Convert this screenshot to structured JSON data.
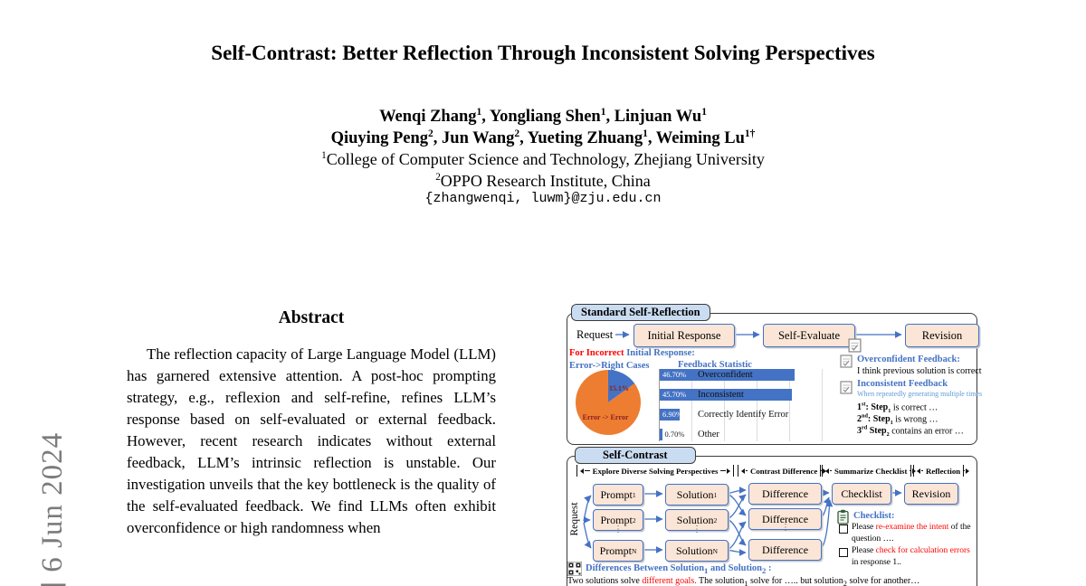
{
  "watermark": {
    "text": "] 6 Jun 2024"
  },
  "title": "Self-Contrast: Better Reflection Through Inconsistent Solving Perspectives",
  "authors": {
    "line1": [
      {
        "t": "Wenqi Zhang",
        "s": "1"
      },
      {
        "t": "Yongliang Shen",
        "s": "1"
      },
      {
        "t": "Linjuan Wu",
        "s": "1"
      }
    ],
    "line2": [
      {
        "t": "Qiuying Peng",
        "s": "2"
      },
      {
        "t": "Jun Wang",
        "s": "2"
      },
      {
        "t": "Yueting Zhuang",
        "s": "1"
      },
      {
        "t": "Weiming Lu",
        "s": "1†"
      }
    ],
    "affil1": {
      "sup": "1",
      "text": "College of Computer Science and Technology, Zhejiang University"
    },
    "affil2": {
      "sup": "2",
      "text": "OPPO Research Institute, China"
    },
    "email": "{zhangwenqi, luwm}@zju.edu.cn"
  },
  "abstract": {
    "heading": "Abstract",
    "text": "The reflection capacity of Large Language Model (LLM) has garnered extensive attention. A post-hoc prompting strategy, e.g., reflexion and self-refine, refines LLM’s response based on self-evaluated or external feedback. However, recent research indicates without external feedback, LLM’s intrinsic reflection is unstable. Our investigation unveils that the key bottleneck is the quality of the self-evaluated feedback. We find LLMs often exhibit overconfidence or high randomness when"
  },
  "colors": {
    "accent_blue": "#4472C4",
    "bar_blue": "#4472C4",
    "pie_orange": "#ED7D31",
    "pie_blue": "#4472C4",
    "red": "#FF0000",
    "light_blue": "#5B9BD5",
    "box_fill": "#FBE5D6",
    "tab_fill": "#CADCF1"
  },
  "figure": {
    "top_panel": {
      "tab": "Standard Self-Reflection",
      "request": "Request",
      "boxes": [
        "Initial Response",
        "Self-Evaluate",
        "Revision"
      ],
      "incorrect_line": {
        "pre": "For ",
        "highlight": "Incorrect",
        "post": " Initial Response:"
      },
      "pie": {
        "label": "Error->Right Cases",
        "type": "pie",
        "slices": [
          {
            "name": "Error -> Right",
            "value": 15.1,
            "label": "15.1%",
            "color": "#4472C4"
          },
          {
            "name": "Error -> Error",
            "value": 84.9,
            "label": "Error -> Error",
            "color": "#ED7D31"
          }
        ]
      },
      "bar_chart": {
        "title": "Feedback Statistic",
        "type": "bar",
        "categories": [
          "Overconfident",
          "Inconsistent",
          "Correctly Identify Error",
          "Other"
        ],
        "values": [
          46.7,
          45.7,
          6.9,
          0.7
        ],
        "value_labels": [
          "46.70%",
          "45.70%",
          "6.90%",
          "0.70%"
        ],
        "bar_color": "#4472C4"
      },
      "notes": {
        "overconfident_title": "Overconfident Feedback:",
        "overconfident_text": "I think previous solution is correct",
        "inconsistent_title": "Inconsistent Feedback",
        "inconsistent_sub": "When repeatedly generating multiple times",
        "steps": [
          {
            "num": "1",
            "ord": "st",
            "colon": ":",
            "sub": "1",
            "tail": " is correct …"
          },
          {
            "num": "2",
            "ord": "nd",
            "colon": ":",
            "sub": "1",
            "tail": " is wrong …"
          },
          {
            "num": "3",
            "ord": "rd",
            "colon": "",
            "sub": "2",
            "tail": " contains an error …"
          }
        ]
      }
    },
    "bottom_panel": {
      "tab": "Self-Contrast",
      "request": "Request",
      "phases": [
        "Explore Diverse Solving Perspectives",
        "Contrast Difference",
        "Summarize Checklist",
        "Reflection"
      ],
      "prompts": [
        [
          {
            "t": "Prompt"
          },
          {
            "sub": "1"
          }
        ],
        [
          {
            "t": "Prompt"
          },
          {
            "sub": "2"
          }
        ],
        [
          {
            "t": "Prompt"
          },
          {
            "sub": "N"
          }
        ]
      ],
      "solutions": [
        [
          {
            "t": "Solution"
          },
          {
            "sub": "1"
          }
        ],
        [
          {
            "t": "Solution"
          },
          {
            "sub": "2"
          }
        ],
        [
          {
            "t": "Solution"
          },
          {
            "sub": "N"
          }
        ]
      ],
      "differences": [
        "Difference",
        "Difference",
        "Difference"
      ],
      "checklist_box": "Checklist",
      "revision_box": "Revision",
      "checklist_notes": {
        "title": "Checklist:",
        "items": [
          [
            {
              "t": "Please ",
              "c": "k"
            },
            {
              "t": "re-examine the intent",
              "c": "r"
            },
            {
              "t": " of the question ….",
              "c": "k"
            }
          ],
          [
            {
              "t": "Please ",
              "c": "k"
            },
            {
              "t": "check for calculation errors",
              "c": "r"
            },
            {
              "t": " in response 1..",
              "c": "k"
            }
          ]
        ]
      },
      "differences_note": {
        "title_parts": [
          {
            "t": "Differences Between Solution"
          },
          {
            "sub": "1"
          },
          {
            "t": " and Solution"
          },
          {
            "sub": "2"
          },
          {
            "t": " :"
          }
        ],
        "body_parts": [
          {
            "t": "Two solutions solve ",
            "c": "k"
          },
          {
            "t": "different goals.",
            "c": "r"
          },
          {
            "t": " The solution",
            "c": "k"
          },
          {
            "sub": "1"
          },
          {
            "t": " solve for ….. but solution",
            "c": "k"
          },
          {
            "sub": "2"
          },
          {
            "t": " solve for another…",
            "c": "k"
          }
        ]
      }
    }
  }
}
